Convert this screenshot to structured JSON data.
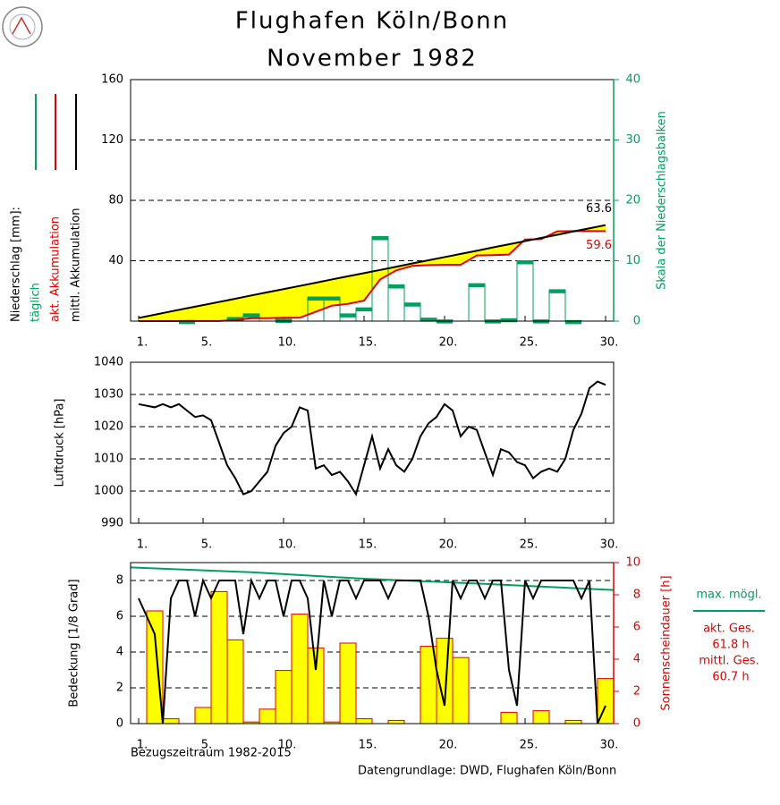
{
  "title": "Flughafen Köln/Bonn",
  "subtitle": "November  1982",
  "footer": [
    "Bezugszeitraum 1982-2015",
    "Datengrundlage: DWD, Flughafen Köln/Bonn"
  ],
  "chart_data": [
    {
      "type": "combo",
      "ylabel": "Niederschlag [mm]:",
      "y2label": "Skala der Niederschlagsbalken",
      "y2color": "#00a060",
      "xlim": [
        0.5,
        30.5
      ],
      "xticks": [
        {
          "value": 1,
          "label": "1."
        },
        {
          "value": 5,
          "label": "5."
        },
        {
          "value": 10,
          "label": "10."
        },
        {
          "value": 15,
          "label": "15."
        },
        {
          "value": 20,
          "label": "20."
        },
        {
          "value": 25,
          "label": "25."
        },
        {
          "value": 30,
          "label": "30."
        }
      ],
      "ylim": [
        0,
        160
      ],
      "yticks": [
        40,
        80,
        120,
        160
      ],
      "y2lim": [
        0,
        40
      ],
      "y2ticks": [
        0,
        10,
        20,
        30,
        40
      ],
      "grid": true,
      "fill_between": {
        "series": [
          2,
          1
        ],
        "color": "#ffff00"
      },
      "x": [
        1,
        2,
        3,
        4,
        5,
        6,
        7,
        8,
        9,
        10,
        11,
        12,
        13,
        14,
        15,
        16,
        17,
        18,
        19,
        20,
        21,
        22,
        23,
        24,
        25,
        26,
        27,
        28,
        29,
        30
      ],
      "series": [
        {
          "name": "täglich",
          "type": "bar",
          "axis": "y2",
          "color": "#00a060",
          "values": [
            0,
            0,
            0,
            0.1,
            0,
            0,
            0.6,
            1.2,
            0,
            0.3,
            0,
            4.0,
            4.0,
            1.2,
            2.2,
            14.0,
            6.0,
            3.0,
            0.5,
            0.2,
            0,
            6.2,
            0.2,
            0.4,
            10.0,
            0.2,
            5.2,
            0.1,
            0,
            0
          ]
        },
        {
          "name": "akt. Akkumulation",
          "type": "line",
          "color": "#e00000",
          "values": [
            0,
            0,
            0,
            0.1,
            0.1,
            0.1,
            0.7,
            1.9,
            1.9,
            2.2,
            2.2,
            6.2,
            10.2,
            11.4,
            13.6,
            27.6,
            33.6,
            36.6,
            37.1,
            37.3,
            37.3,
            43.5,
            43.7,
            44.1,
            54.1,
            54.3,
            59.5,
            59.6,
            59.6,
            59.6
          ]
        },
        {
          "name": "mittl. Akkumulation",
          "type": "line",
          "color": "#000000",
          "values": [
            2.1,
            4.2,
            6.4,
            8.5,
            10.6,
            12.7,
            14.8,
            17.0,
            19.1,
            21.2,
            23.3,
            25.4,
            27.6,
            29.7,
            31.8,
            33.9,
            36.0,
            38.2,
            40.3,
            42.4,
            44.5,
            46.6,
            48.8,
            50.9,
            53.0,
            55.1,
            57.2,
            59.4,
            61.5,
            63.6
          ]
        }
      ]
    },
    {
      "type": "line",
      "ylabel": "Luftdruck [hPa]",
      "xlim": [
        0.5,
        30.5
      ],
      "xticks": [
        {
          "value": 1,
          "label": "1."
        },
        {
          "value": 5,
          "label": "5."
        },
        {
          "value": 10,
          "label": "10."
        },
        {
          "value": 15,
          "label": "15."
        },
        {
          "value": 20,
          "label": "20."
        },
        {
          "value": 25,
          "label": "25."
        },
        {
          "value": 30,
          "label": "30."
        }
      ],
      "ylim": [
        990,
        1040
      ],
      "yticks": [
        990,
        1000,
        1010,
        1020,
        1030,
        1040
      ],
      "grid": true,
      "series": [
        {
          "type": "line",
          "color": "#000000",
          "x": [
            1,
            1.5,
            2,
            2.5,
            3,
            3.5,
            4,
            4.5,
            5,
            5.5,
            6,
            6.5,
            7,
            7.5,
            8,
            8.5,
            9,
            9.5,
            10,
            10.5,
            11,
            11.5,
            12,
            12.5,
            13,
            13.5,
            14,
            14.5,
            15,
            15.5,
            16,
            16.5,
            17,
            17.5,
            18,
            18.5,
            19,
            19.5,
            20,
            20.5,
            21,
            21.5,
            22,
            22.5,
            23,
            23.5,
            24,
            24.5,
            25,
            25.5,
            26,
            26.5,
            27,
            27.5,
            28,
            28.5,
            29,
            29.5,
            30
          ],
          "values": [
            1027,
            1026.5,
            1026,
            1027,
            1026,
            1027,
            1025,
            1023,
            1023.5,
            1022,
            1015,
            1008,
            1004,
            999,
            1000,
            1003,
            1006,
            1014,
            1018,
            1020,
            1026,
            1025,
            1007,
            1008,
            1005,
            1006,
            1003,
            999,
            1008,
            1017,
            1007,
            1013,
            1008,
            1006,
            1010,
            1017,
            1021,
            1023,
            1027,
            1025,
            1017,
            1020,
            1019,
            1012,
            1005,
            1013,
            1012,
            1009,
            1008,
            1004,
            1006,
            1007,
            1006,
            1010,
            1019,
            1024,
            1032,
            1034,
            1033
          ]
        }
      ]
    },
    {
      "type": "combo",
      "ylabel": "Bedeckung [1/8 Grad]",
      "y2label": "Sonnenscheindauer [h]",
      "y2color": "#e00000",
      "xlim": [
        0.5,
        30.5
      ],
      "xticks": [
        {
          "value": 1,
          "label": "1."
        },
        {
          "value": 5,
          "label": "5."
        },
        {
          "value": 10,
          "label": "10."
        },
        {
          "value": 15,
          "label": "15."
        },
        {
          "value": 20,
          "label": "20."
        },
        {
          "value": 25,
          "label": "25."
        },
        {
          "value": 30,
          "label": "30."
        }
      ],
      "ylim": [
        0,
        9
      ],
      "yticks": [
        0,
        2,
        4,
        6,
        8
      ],
      "y2lim": [
        0,
        10
      ],
      "y2ticks": [
        0,
        2,
        4,
        6,
        8,
        10
      ],
      "grid": true,
      "annotations": [
        "akt. Ges.",
        "61.8 h",
        "mittl. Ges.",
        "60.7 h"
      ],
      "x": [
        1,
        2,
        3,
        4,
        5,
        6,
        7,
        8,
        9,
        10,
        11,
        12,
        13,
        14,
        15,
        16,
        17,
        18,
        19,
        20,
        21,
        22,
        23,
        24,
        25,
        26,
        27,
        28,
        29,
        30
      ],
      "series": [
        {
          "type": "bar",
          "axis": "y2",
          "color": "#e00000",
          "fill": "#ffff00",
          "values": [
            0,
            7.0,
            0.3,
            0,
            1.0,
            8.2,
            5.2,
            0.1,
            0.9,
            3.3,
            6.8,
            4.7,
            0.1,
            5.0,
            0.3,
            0,
            0.2,
            0,
            4.8,
            5.3,
            4.1,
            0,
            0,
            0.7,
            0,
            0.8,
            0,
            0.2,
            0,
            2.8
          ]
        },
        {
          "name": "max. mögl.",
          "type": "line",
          "axis": "y2",
          "color": "#00a060",
          "x": [
            0.5,
            8,
            15,
            22,
            30.5
          ],
          "values": [
            9.7,
            9.4,
            9.0,
            8.7,
            8.3
          ]
        },
        {
          "type": "line",
          "color": "#000000",
          "x": [
            1,
            1.5,
            2,
            2.5,
            3,
            3.5,
            4,
            4.5,
            5,
            5.5,
            6,
            6.5,
            7,
            7.5,
            8,
            8.5,
            9,
            9.5,
            10,
            10.5,
            11,
            11.5,
            12,
            12.5,
            13,
            13.5,
            14,
            14.5,
            15,
            15.5,
            16,
            16.5,
            17,
            17.5,
            18,
            18.5,
            19,
            19.5,
            20,
            20.5,
            21,
            21.5,
            22,
            22.5,
            23,
            23.5,
            24,
            24.5,
            25,
            25.5,
            26,
            26.5,
            27,
            27.5,
            28,
            28.5,
            29,
            29.5,
            30
          ],
          "values": [
            7,
            6,
            5,
            0,
            7,
            8,
            8,
            6,
            8,
            7,
            8,
            8,
            8,
            5,
            8,
            7,
            8,
            8,
            6,
            8,
            8,
            7,
            3,
            8,
            6,
            8,
            8,
            7,
            8,
            8,
            8,
            7,
            8,
            8,
            8,
            8,
            6,
            3,
            1,
            8,
            7,
            8,
            8,
            7,
            8,
            8,
            3,
            1,
            8,
            7,
            8,
            8,
            8,
            8,
            8,
            7,
            8,
            0,
            1
          ]
        }
      ]
    }
  ]
}
